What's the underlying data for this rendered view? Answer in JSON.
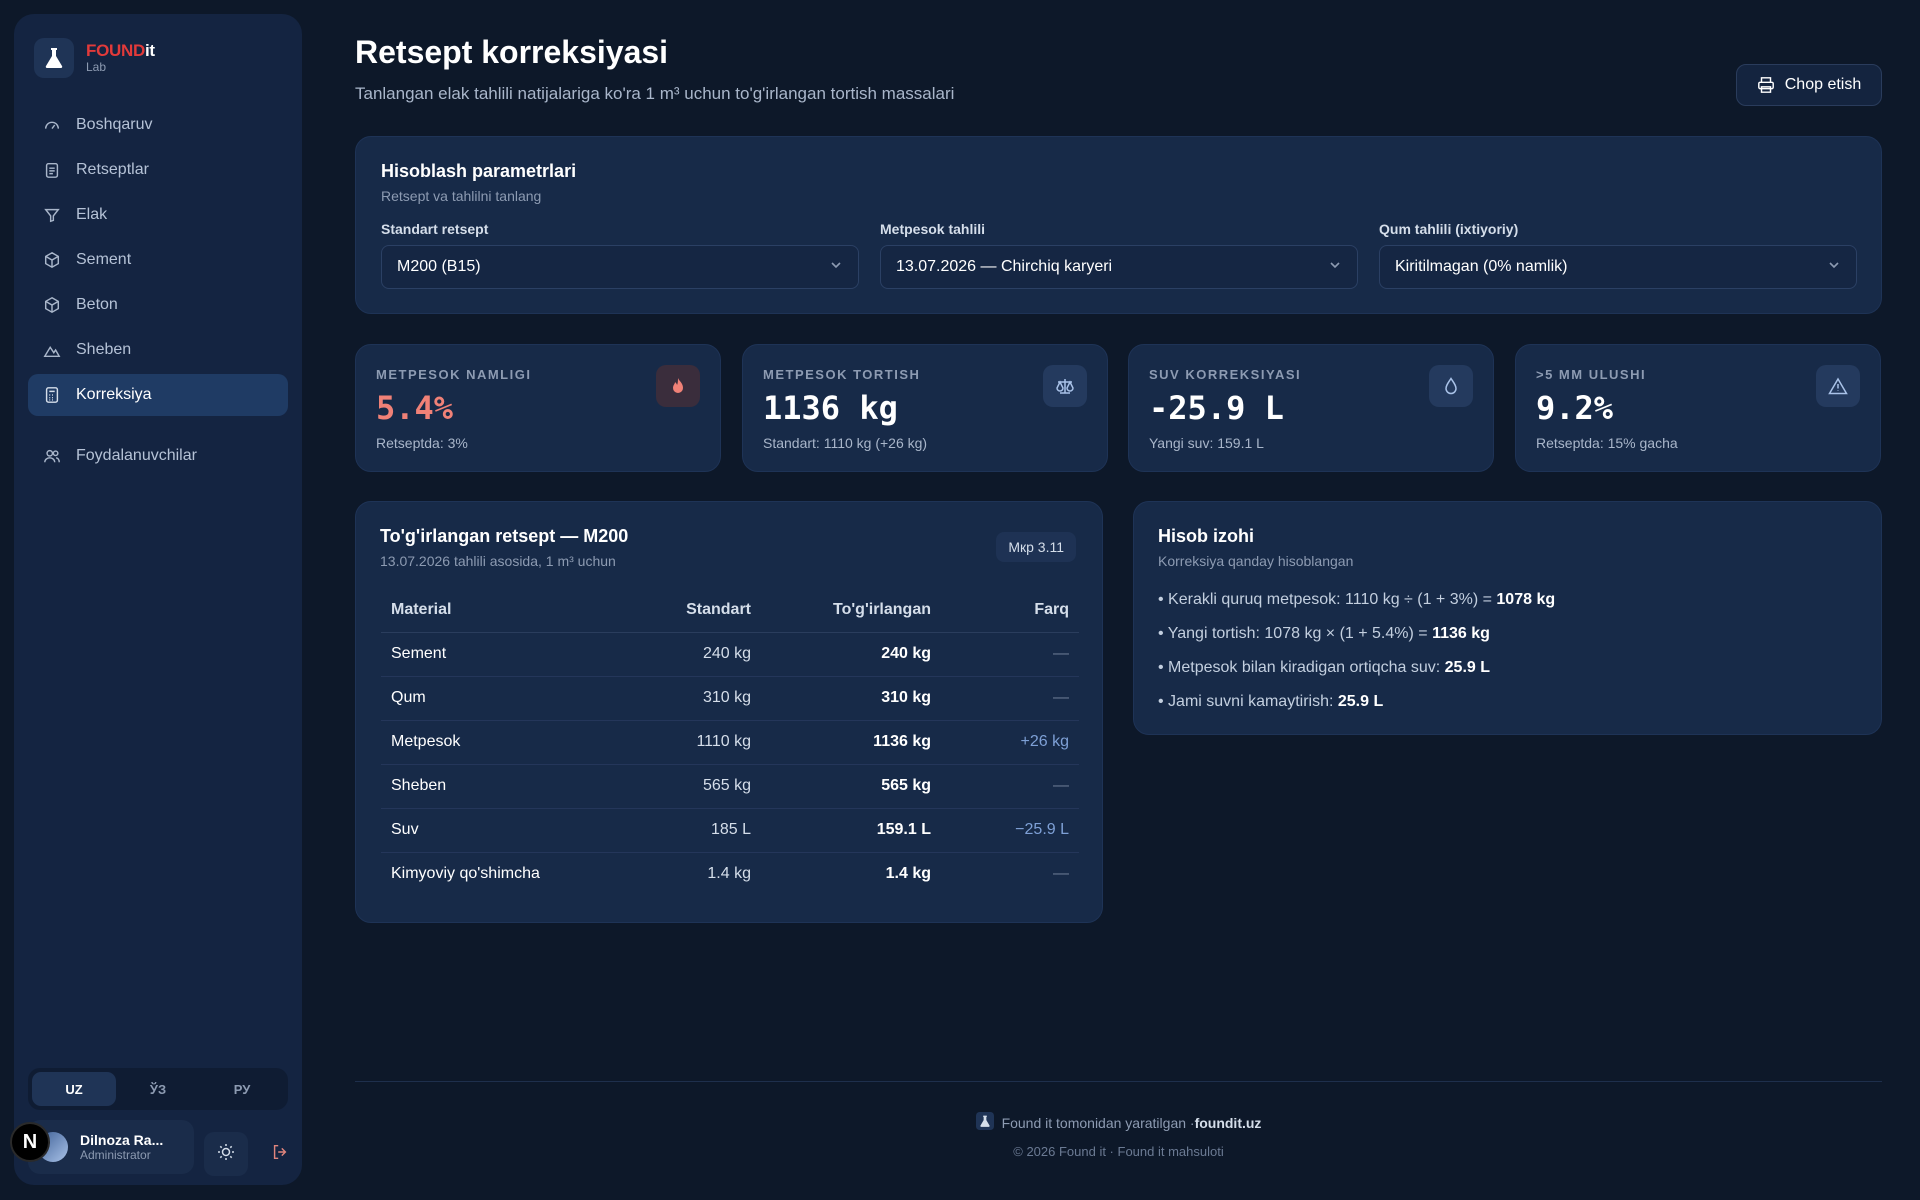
{
  "brand": {
    "name_red": "FOUND",
    "name_white": "it",
    "sub": "Lab"
  },
  "sidebar": {
    "items": [
      {
        "label": "Boshqaruv",
        "icon": "gauge-icon"
      },
      {
        "label": "Retseptlar",
        "icon": "clipboard-icon"
      },
      {
        "label": "Elak",
        "icon": "filter-icon"
      },
      {
        "label": "Sement",
        "icon": "box-icon"
      },
      {
        "label": "Beton",
        "icon": "cube-icon"
      },
      {
        "label": "Sheben",
        "icon": "mountain-icon"
      },
      {
        "label": "Korreksiya",
        "icon": "calculator-icon",
        "active": true
      },
      {
        "label": "Foydalanuvchilar",
        "icon": "users-icon"
      }
    ],
    "languages": [
      "UZ",
      "ЎЗ",
      "РУ"
    ],
    "active_language": "UZ",
    "user": {
      "name": "Dilnoza Ra...",
      "role": "Administrator"
    },
    "n_badge": "N"
  },
  "header": {
    "title": "Retsept korreksiyasi",
    "subtitle": "Tanlangan elak tahlili natijalariga ko'ra 1 m³ uchun to'g'irlangan tortish massalari",
    "print_label": "Chop etish"
  },
  "params": {
    "title": "Hisoblash parametrlari",
    "subtitle": "Retsept va tahlilni tanlang",
    "fields": [
      {
        "label": "Standart retsept",
        "value": "M200 (B15)"
      },
      {
        "label": "Metpesok tahlili",
        "value": "13.07.2026 — Chirchiq karyeri"
      },
      {
        "label": "Qum tahlili (ixtiyoriy)",
        "value": "Kiritilmagan (0% namlik)"
      }
    ]
  },
  "stats": [
    {
      "label": "METPESOK NAMLIGI",
      "value": "5.4%",
      "note": "Retseptda: 3%",
      "icon": "flame-icon",
      "accent": "#f08177"
    },
    {
      "label": "METPESOK TORTISH",
      "value": "1136 kg",
      "note": "Standart: 1110 kg (+26 kg)",
      "icon": "scale-icon"
    },
    {
      "label": "SUV KORREKSIYASI",
      "value": "-25.9 L",
      "note": "Yangi suv: 159.1 L",
      "icon": "droplet-icon"
    },
    {
      "label": ">5 MM ULUSHI",
      "value": "9.2%",
      "note": "Retseptda: 15% gacha",
      "icon": "warning-icon"
    }
  ],
  "recipe": {
    "title": "To'g'irlangan retsept — M200",
    "subtitle": "13.07.2026 tahlili asosida, 1 m³ uchun",
    "tag": "Мкр 3.11",
    "columns": [
      "Material",
      "Standart",
      "To'g'irlangan",
      "Farq"
    ],
    "rows": [
      {
        "material": "Sement",
        "standard": "240 kg",
        "corrected": "240 kg",
        "diff": "—"
      },
      {
        "material": "Qum",
        "standard": "310 kg",
        "corrected": "310 kg",
        "diff": "—"
      },
      {
        "material": "Metpesok",
        "standard": "1110 kg",
        "corrected": "1136 kg",
        "diff": "+26 kg"
      },
      {
        "material": "Sheben",
        "standard": "565 kg",
        "corrected": "565 kg",
        "diff": "—"
      },
      {
        "material": "Suv",
        "standard": "185 L",
        "corrected": "159.1 L",
        "diff": "−25.9 L"
      },
      {
        "material": "Kimyoviy qo'shimcha",
        "standard": "1.4 kg",
        "corrected": "1.4 kg",
        "diff": "—"
      }
    ]
  },
  "calc": {
    "title": "Hisob izohi",
    "subtitle": "Korreksiya qanday hisoblangan",
    "lines": [
      {
        "text": "• Kerakli quruq metpesok: 1110 kg ÷ (1 + 3%) = ",
        "bold": "1078 kg"
      },
      {
        "text": "• Yangi tortish: 1078 kg × (1 + 5.4%) = ",
        "bold": "1136 kg"
      },
      {
        "text": "• Metpesok bilan kiradigan ortiqcha suv: ",
        "bold": "25.9 L"
      },
      {
        "text": "• Jami suvni kamaytirish: ",
        "bold": "25.9 L"
      }
    ]
  },
  "footer": {
    "made_by": "Found it tomonidan yaratilgan · ",
    "site": "foundit.uz",
    "copyright": "© 2026 Found it · Found it mahsuloti"
  }
}
